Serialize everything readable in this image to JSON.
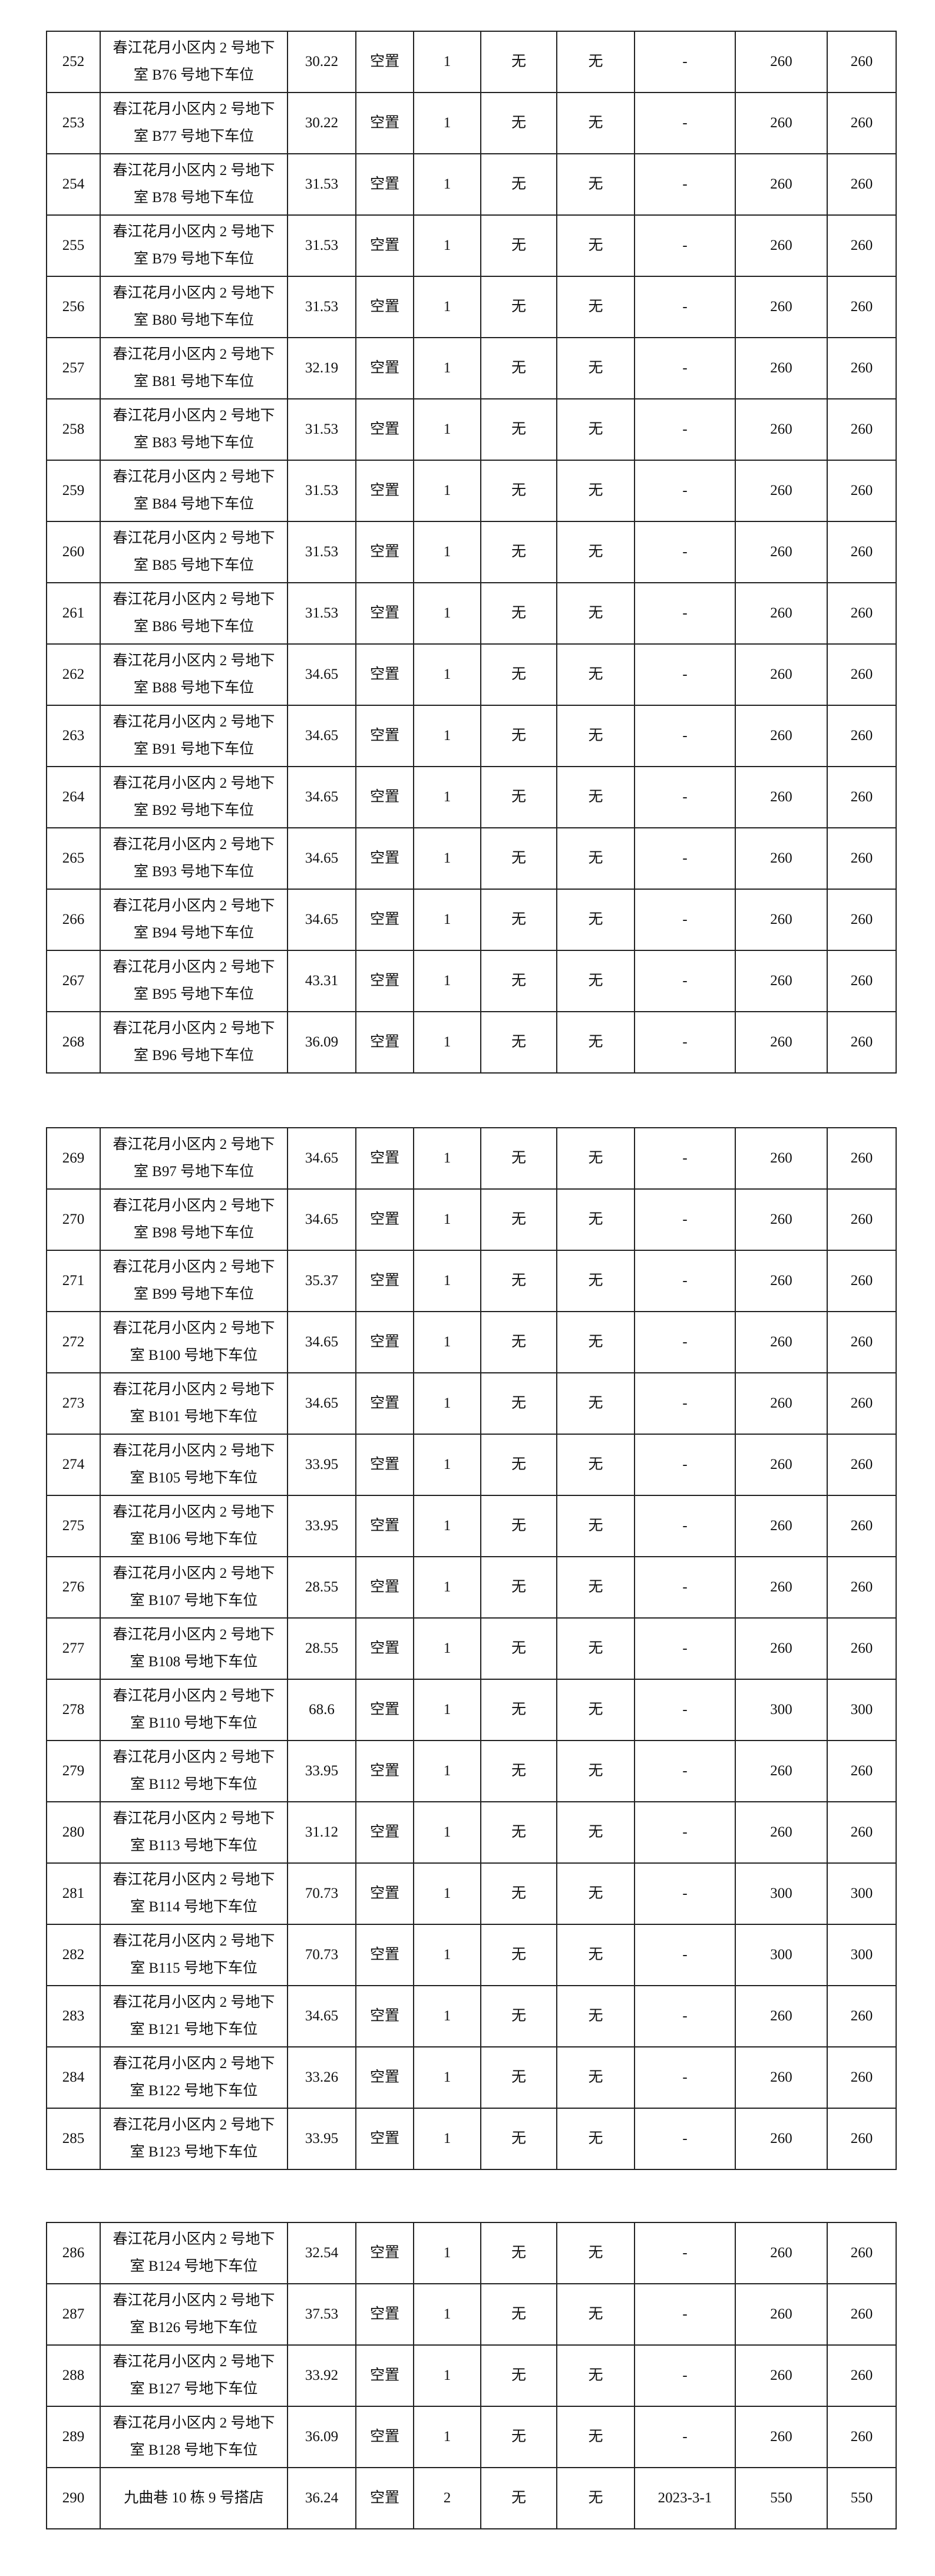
{
  "tables": [
    {
      "rows": [
        [
          "252",
          "春江花月小区内 2 号地下室 B76 号地下车位",
          "30.22",
          "空置",
          "1",
          "无",
          "无",
          "-",
          "260",
          "260"
        ],
        [
          "253",
          "春江花月小区内 2 号地下室 B77 号地下车位",
          "30.22",
          "空置",
          "1",
          "无",
          "无",
          "-",
          "260",
          "260"
        ],
        [
          "254",
          "春江花月小区内 2 号地下室 B78 号地下车位",
          "31.53",
          "空置",
          "1",
          "无",
          "无",
          "-",
          "260",
          "260"
        ],
        [
          "255",
          "春江花月小区内 2 号地下室 B79 号地下车位",
          "31.53",
          "空置",
          "1",
          "无",
          "无",
          "-",
          "260",
          "260"
        ],
        [
          "256",
          "春江花月小区内 2 号地下室 B80 号地下车位",
          "31.53",
          "空置",
          "1",
          "无",
          "无",
          "-",
          "260",
          "260"
        ],
        [
          "257",
          "春江花月小区内 2 号地下室 B81 号地下车位",
          "32.19",
          "空置",
          "1",
          "无",
          "无",
          "-",
          "260",
          "260"
        ],
        [
          "258",
          "春江花月小区内 2 号地下室 B83 号地下车位",
          "31.53",
          "空置",
          "1",
          "无",
          "无",
          "-",
          "260",
          "260"
        ],
        [
          "259",
          "春江花月小区内 2 号地下室 B84 号地下车位",
          "31.53",
          "空置",
          "1",
          "无",
          "无",
          "-",
          "260",
          "260"
        ],
        [
          "260",
          "春江花月小区内 2 号地下室 B85 号地下车位",
          "31.53",
          "空置",
          "1",
          "无",
          "无",
          "-",
          "260",
          "260"
        ],
        [
          "261",
          "春江花月小区内 2 号地下室 B86 号地下车位",
          "31.53",
          "空置",
          "1",
          "无",
          "无",
          "-",
          "260",
          "260"
        ],
        [
          "262",
          "春江花月小区内 2 号地下室 B88 号地下车位",
          "34.65",
          "空置",
          "1",
          "无",
          "无",
          "-",
          "260",
          "260"
        ],
        [
          "263",
          "春江花月小区内 2 号地下室 B91 号地下车位",
          "34.65",
          "空置",
          "1",
          "无",
          "无",
          "-",
          "260",
          "260"
        ],
        [
          "264",
          "春江花月小区内 2 号地下室 B92 号地下车位",
          "34.65",
          "空置",
          "1",
          "无",
          "无",
          "-",
          "260",
          "260"
        ],
        [
          "265",
          "春江花月小区内 2 号地下室 B93 号地下车位",
          "34.65",
          "空置",
          "1",
          "无",
          "无",
          "-",
          "260",
          "260"
        ],
        [
          "266",
          "春江花月小区内 2 号地下室 B94 号地下车位",
          "34.65",
          "空置",
          "1",
          "无",
          "无",
          "-",
          "260",
          "260"
        ],
        [
          "267",
          "春江花月小区内 2 号地下室 B95 号地下车位",
          "43.31",
          "空置",
          "1",
          "无",
          "无",
          "-",
          "260",
          "260"
        ],
        [
          "268",
          "春江花月小区内 2 号地下室 B96 号地下车位",
          "36.09",
          "空置",
          "1",
          "无",
          "无",
          "-",
          "260",
          "260"
        ]
      ]
    },
    {
      "rows": [
        [
          "269",
          "春江花月小区内 2 号地下室 B97 号地下车位",
          "34.65",
          "空置",
          "1",
          "无",
          "无",
          "-",
          "260",
          "260"
        ],
        [
          "270",
          "春江花月小区内 2 号地下室 B98 号地下车位",
          "34.65",
          "空置",
          "1",
          "无",
          "无",
          "-",
          "260",
          "260"
        ],
        [
          "271",
          "春江花月小区内 2 号地下室 B99 号地下车位",
          "35.37",
          "空置",
          "1",
          "无",
          "无",
          "-",
          "260",
          "260"
        ],
        [
          "272",
          "春江花月小区内 2 号地下室 B100 号地下车位",
          "34.65",
          "空置",
          "1",
          "无",
          "无",
          "-",
          "260",
          "260"
        ],
        [
          "273",
          "春江花月小区内 2 号地下室 B101 号地下车位",
          "34.65",
          "空置",
          "1",
          "无",
          "无",
          "-",
          "260",
          "260"
        ],
        [
          "274",
          "春江花月小区内 2 号地下室 B105 号地下车位",
          "33.95",
          "空置",
          "1",
          "无",
          "无",
          "-",
          "260",
          "260"
        ],
        [
          "275",
          "春江花月小区内 2 号地下室 B106 号地下车位",
          "33.95",
          "空置",
          "1",
          "无",
          "无",
          "-",
          "260",
          "260"
        ],
        [
          "276",
          "春江花月小区内 2 号地下室 B107 号地下车位",
          "28.55",
          "空置",
          "1",
          "无",
          "无",
          "-",
          "260",
          "260"
        ],
        [
          "277",
          "春江花月小区内 2 号地下室 B108 号地下车位",
          "28.55",
          "空置",
          "1",
          "无",
          "无",
          "-",
          "260",
          "260"
        ],
        [
          "278",
          "春江花月小区内 2 号地下室 B110 号地下车位",
          "68.6",
          "空置",
          "1",
          "无",
          "无",
          "-",
          "300",
          "300"
        ],
        [
          "279",
          "春江花月小区内 2 号地下室 B112 号地下车位",
          "33.95",
          "空置",
          "1",
          "无",
          "无",
          "-",
          "260",
          "260"
        ],
        [
          "280",
          "春江花月小区内 2 号地下室 B113 号地下车位",
          "31.12",
          "空置",
          "1",
          "无",
          "无",
          "-",
          "260",
          "260"
        ],
        [
          "281",
          "春江花月小区内 2 号地下室 B114 号地下车位",
          "70.73",
          "空置",
          "1",
          "无",
          "无",
          "-",
          "300",
          "300"
        ],
        [
          "282",
          "春江花月小区内 2 号地下室 B115 号地下车位",
          "70.73",
          "空置",
          "1",
          "无",
          "无",
          "-",
          "300",
          "300"
        ],
        [
          "283",
          "春江花月小区内 2 号地下室 B121 号地下车位",
          "34.65",
          "空置",
          "1",
          "无",
          "无",
          "-",
          "260",
          "260"
        ],
        [
          "284",
          "春江花月小区内 2 号地下室 B122 号地下车位",
          "33.26",
          "空置",
          "1",
          "无",
          "无",
          "-",
          "260",
          "260"
        ],
        [
          "285",
          "春江花月小区内 2 号地下室 B123 号地下车位",
          "33.95",
          "空置",
          "1",
          "无",
          "无",
          "-",
          "260",
          "260"
        ]
      ]
    },
    {
      "rows": [
        [
          "286",
          "春江花月小区内 2 号地下室 B124 号地下车位",
          "32.54",
          "空置",
          "1",
          "无",
          "无",
          "-",
          "260",
          "260"
        ],
        [
          "287",
          "春江花月小区内 2 号地下室 B126 号地下车位",
          "37.53",
          "空置",
          "1",
          "无",
          "无",
          "-",
          "260",
          "260"
        ],
        [
          "288",
          "春江花月小区内 2 号地下室 B127 号地下车位",
          "33.92",
          "空置",
          "1",
          "无",
          "无",
          "-",
          "260",
          "260"
        ],
        [
          "289",
          "春江花月小区内 2 号地下室 B128 号地下车位",
          "36.09",
          "空置",
          "1",
          "无",
          "无",
          "-",
          "260",
          "260"
        ],
        [
          "290",
          "九曲巷 10 栋 9 号搭店",
          "36.24",
          "空置",
          "2",
          "无",
          "无",
          "2023-3-1",
          "550",
          "550"
        ]
      ]
    }
  ]
}
